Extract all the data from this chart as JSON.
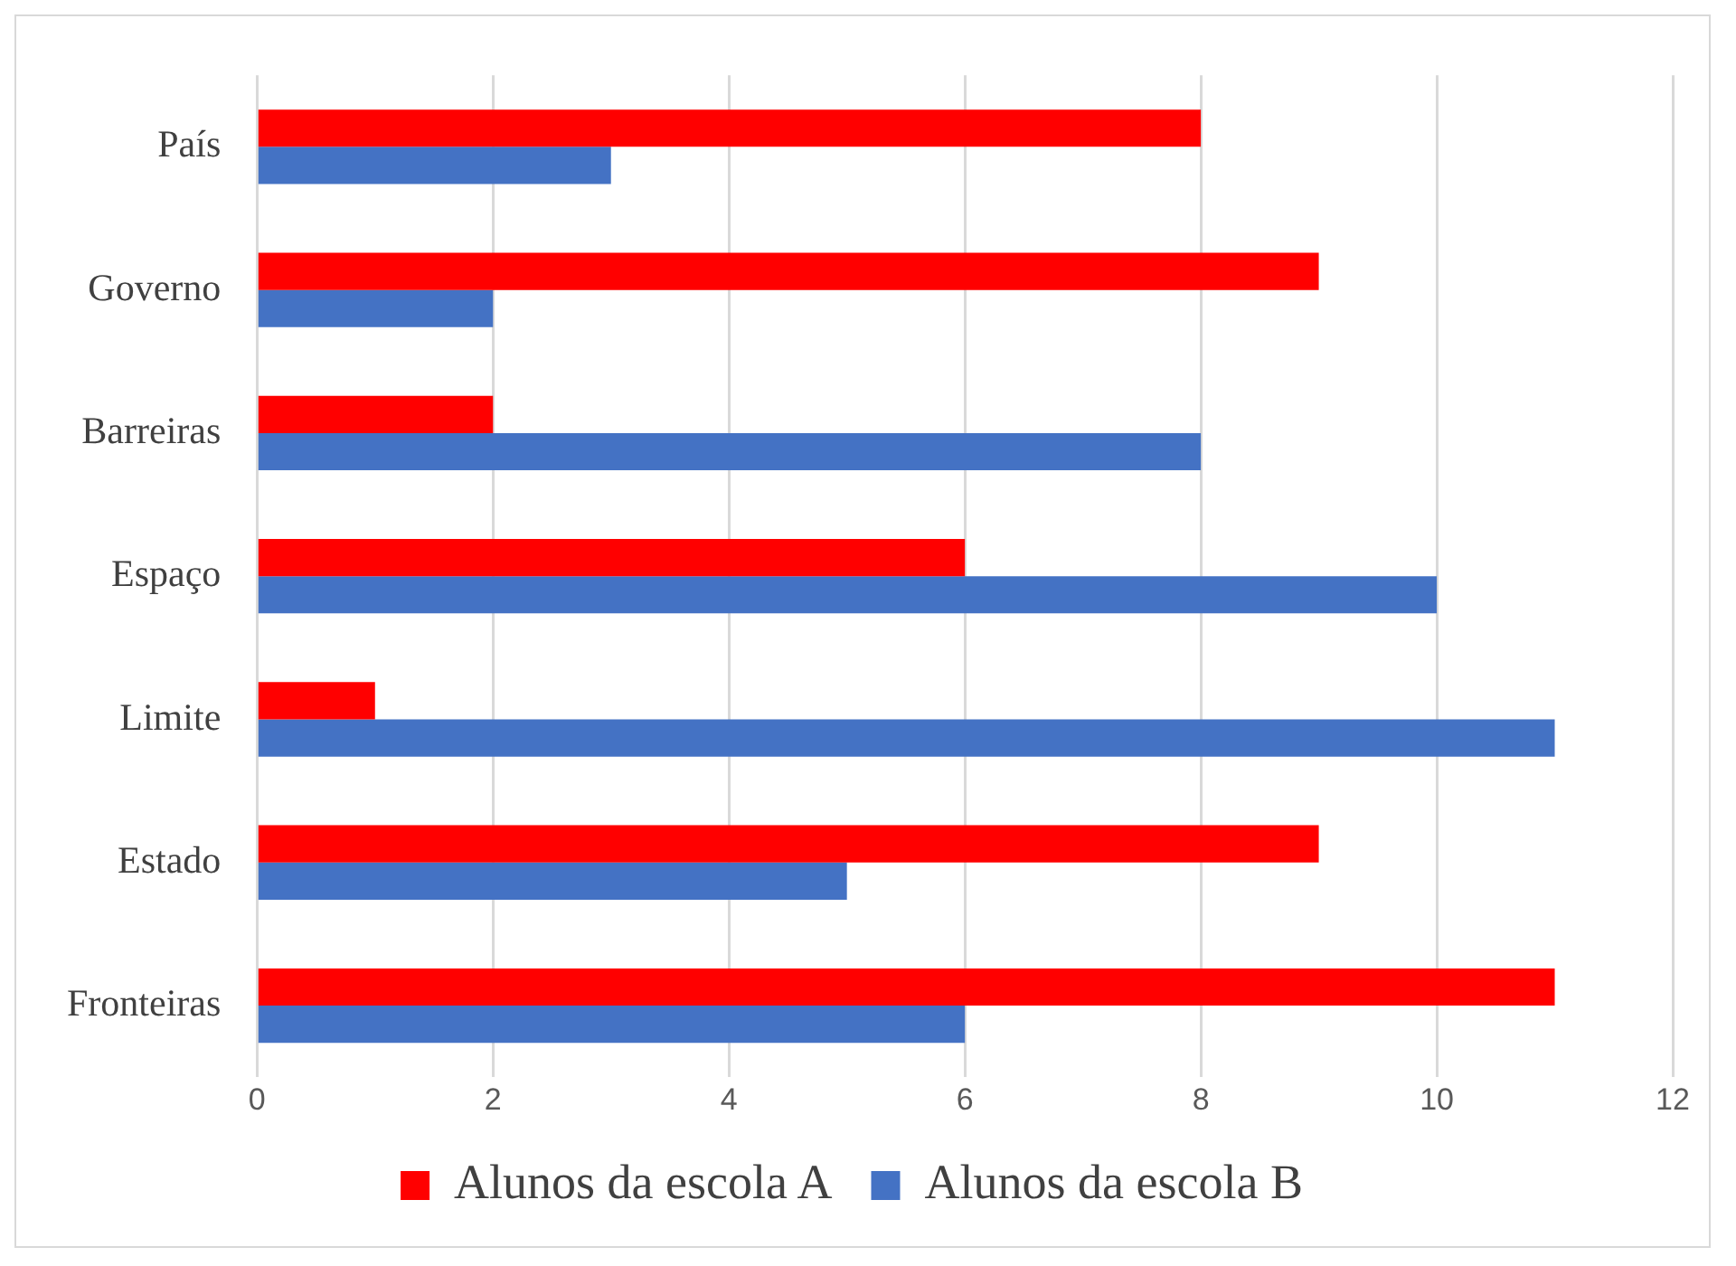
{
  "chart_data": {
    "type": "bar",
    "orientation": "horizontal",
    "categories": [
      "País",
      "Governo",
      "Barreiras",
      "Espaço",
      "Limite",
      "Estado",
      "Fronteiras"
    ],
    "series": [
      {
        "name": "Alunos da escola A",
        "color": "#ff0000",
        "values": [
          8,
          9,
          2,
          6,
          1,
          9,
          11
        ]
      },
      {
        "name": "Alunos da escola B",
        "color": "#4472c4",
        "values": [
          3,
          2,
          8,
          10,
          11,
          5,
          6
        ]
      }
    ],
    "xlim": [
      0,
      12
    ],
    "xticks": [
      0,
      2,
      4,
      6,
      8,
      10,
      12
    ],
    "grid": "x",
    "legend": "bottom"
  }
}
